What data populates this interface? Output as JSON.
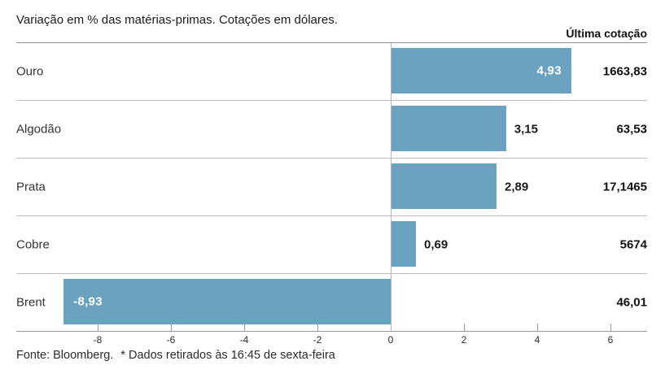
{
  "title": "Variação em % das matérias-primas. Cotações em dólares.",
  "columns": {
    "last_quote": "Última cotação"
  },
  "footer": {
    "source": "Fonte: Bloomberg.",
    "note": "* Dados retirados às 16:45 de sexta-feira"
  },
  "colors": {
    "bar": "#6aa2c0",
    "bar_label_inside": "#ffffff",
    "bar_label_outside": "#1a1a1a",
    "row_separator": "#bcbcbc",
    "header_line": "#8f8f8f",
    "zero_line": "#b3b3b3"
  },
  "chart_data": {
    "type": "bar",
    "orientation": "horizontal",
    "title": "Variação em % das matérias-primas. Cotações em dólares.",
    "value_column_header": "Última cotação",
    "categories": [
      "Ouro",
      "Algodão",
      "Prata",
      "Cobre",
      "Brent"
    ],
    "series": [
      {
        "name": "Variação %",
        "values": [
          4.93,
          3.15,
          2.89,
          0.69,
          -8.93
        ]
      },
      {
        "name": "Última cotação",
        "values": [
          1663.83,
          63.53,
          17.1465,
          5674,
          46.01
        ]
      }
    ],
    "value_labels": [
      "4,93",
      "3,15",
      "2,89",
      "0,69",
      "-8,93"
    ],
    "quote_labels": [
      "1663,83",
      "63,53",
      "17,1465",
      "5674",
      "46,01"
    ],
    "bar_label_positions": [
      "inside-right",
      "outside",
      "outside",
      "outside",
      "inside-left"
    ],
    "xlim": [
      -10.2,
      7
    ],
    "x_ticks": [
      -8,
      -6,
      -4,
      -2,
      0,
      2,
      4,
      6
    ],
    "x_tick_labels": [
      "-8",
      "-6",
      "-4",
      "-2",
      "0",
      "2",
      "4",
      "6"
    ],
    "grid": false,
    "legend": false,
    "source": "Fonte: Bloomberg. * Dados retirados às 16:45 de sexta-feira"
  }
}
